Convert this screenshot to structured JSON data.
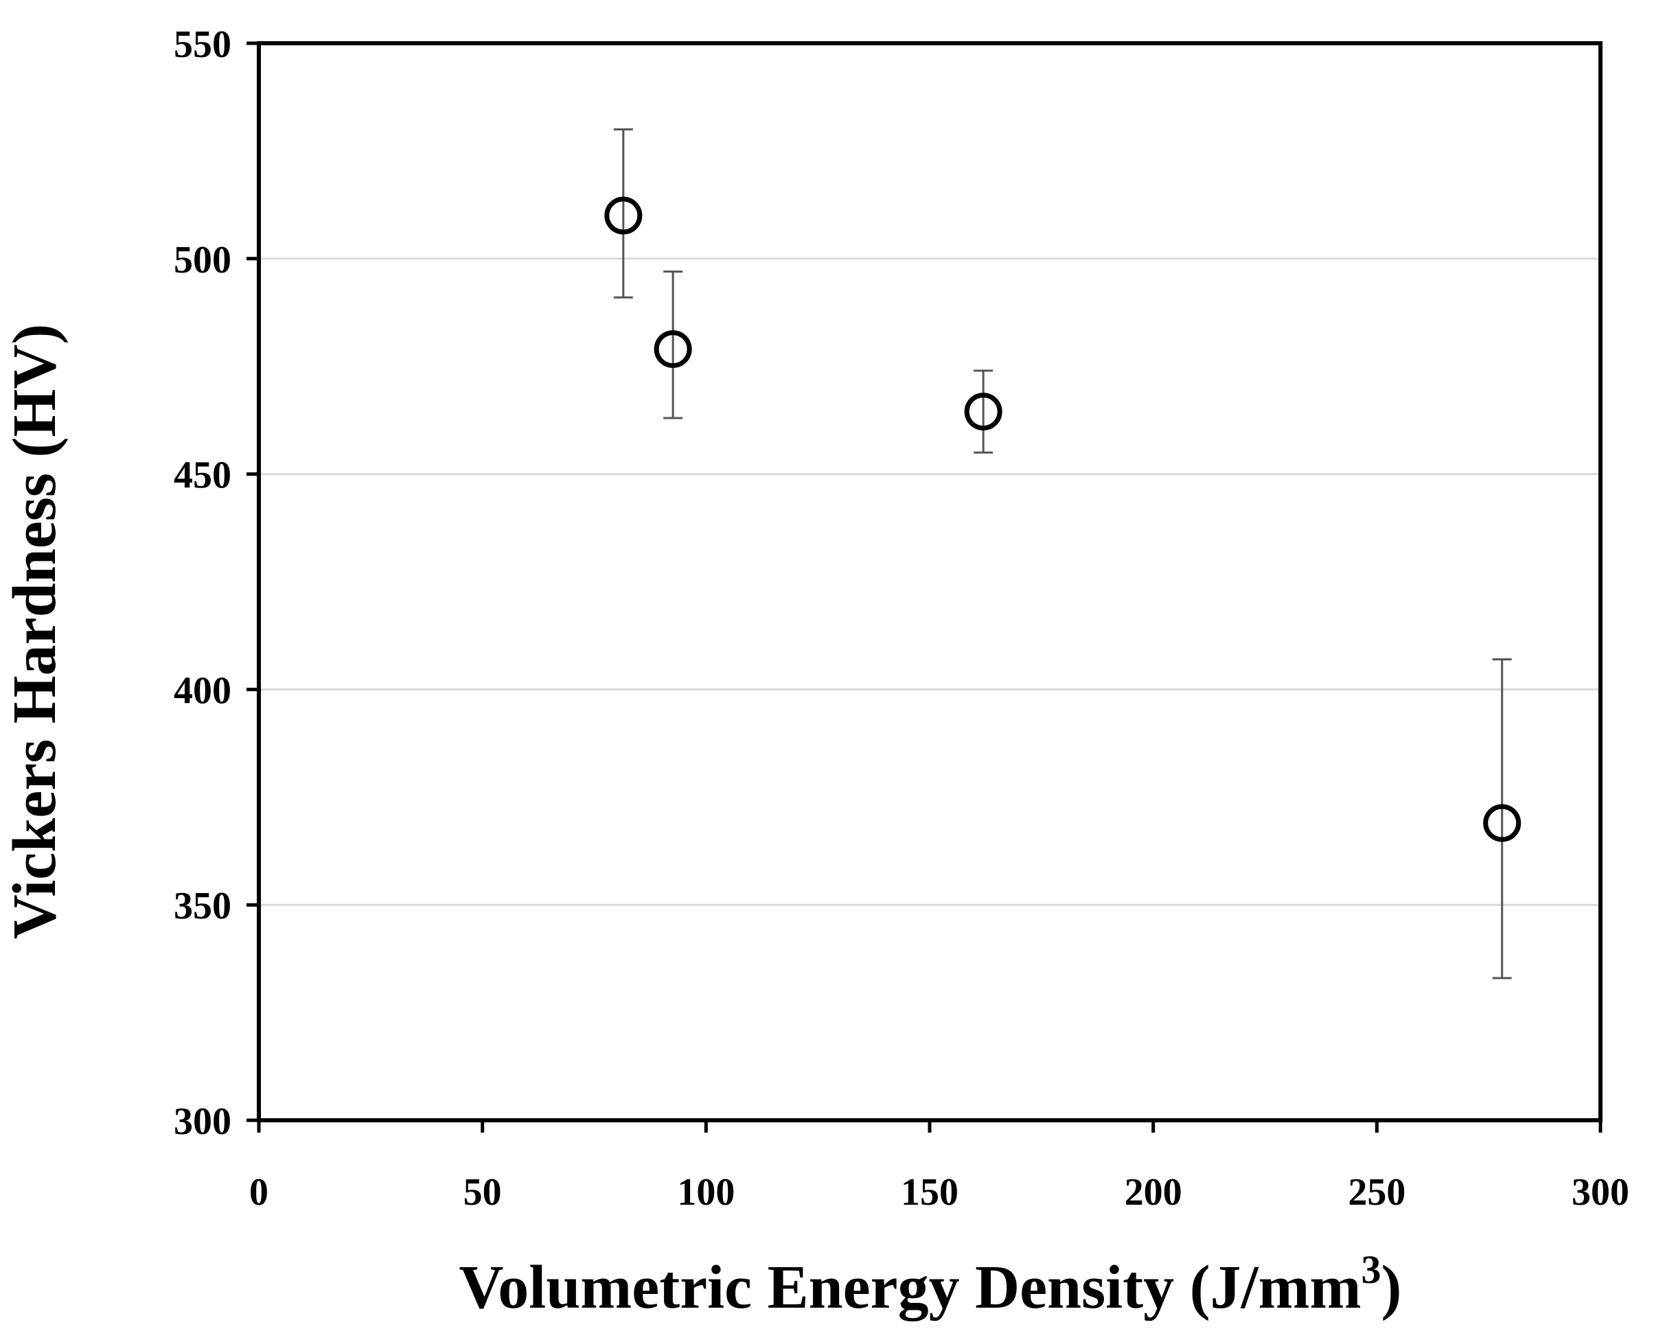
{
  "chart_data": {
    "type": "scatter",
    "title": "",
    "xlabel": "Volumetric Energy Density (J/mm",
    "xlabel_sup": "3",
    "xlabel_end": ")",
    "ylabel": "Vickers Hardness (HV)",
    "xlim": [
      0,
      300
    ],
    "ylim": [
      300,
      550
    ],
    "xticks": [
      0,
      50,
      100,
      150,
      200,
      250,
      300
    ],
    "yticks": [
      300,
      350,
      400,
      450,
      500,
      550
    ],
    "gridlines_y": [
      350,
      400,
      450,
      500
    ],
    "marker": "open-circle",
    "series": [
      {
        "name": "Vickers Hardness",
        "points": [
          {
            "x": 81.5,
            "y": 510,
            "err_low": 491,
            "err_high": 530
          },
          {
            "x": 92.6,
            "y": 479,
            "err_low": 463,
            "err_high": 497
          },
          {
            "x": 162.0,
            "y": 464.5,
            "err_low": 455,
            "err_high": 474
          },
          {
            "x": 278.0,
            "y": 369,
            "err_low": 333,
            "err_high": 407
          }
        ]
      }
    ],
    "colors": {
      "marker": "#000000",
      "errorbar": "#555555",
      "grid": "#d9d9d9",
      "axis": "#000000"
    }
  }
}
